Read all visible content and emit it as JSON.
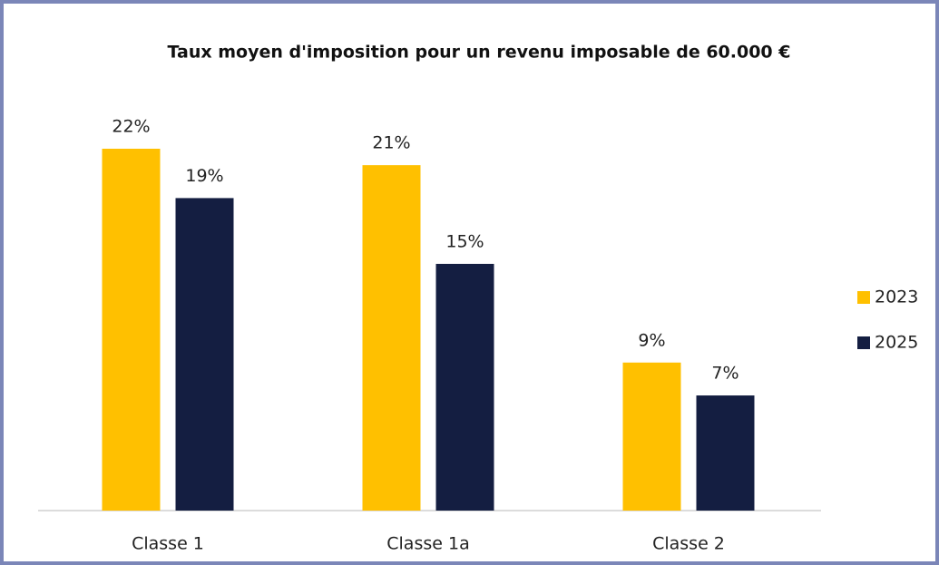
{
  "chart_data": {
    "type": "bar",
    "title": "Taux moyen d'imposition pour un revenu imposable de 60.000 €",
    "categories": [
      "Classe 1",
      "Classe 1a",
      "Classe 2"
    ],
    "series": [
      {
        "name": "2023",
        "color": "#ffc000",
        "values": [
          22,
          21,
          9
        ],
        "value_labels": [
          "22%",
          "21%",
          "9%"
        ]
      },
      {
        "name": "2025",
        "color": "#141e41",
        "values": [
          19,
          15,
          7
        ],
        "value_labels": [
          "19%",
          "15%",
          "7%"
        ]
      }
    ],
    "ylim": [
      0,
      22
    ],
    "legend": "right"
  }
}
